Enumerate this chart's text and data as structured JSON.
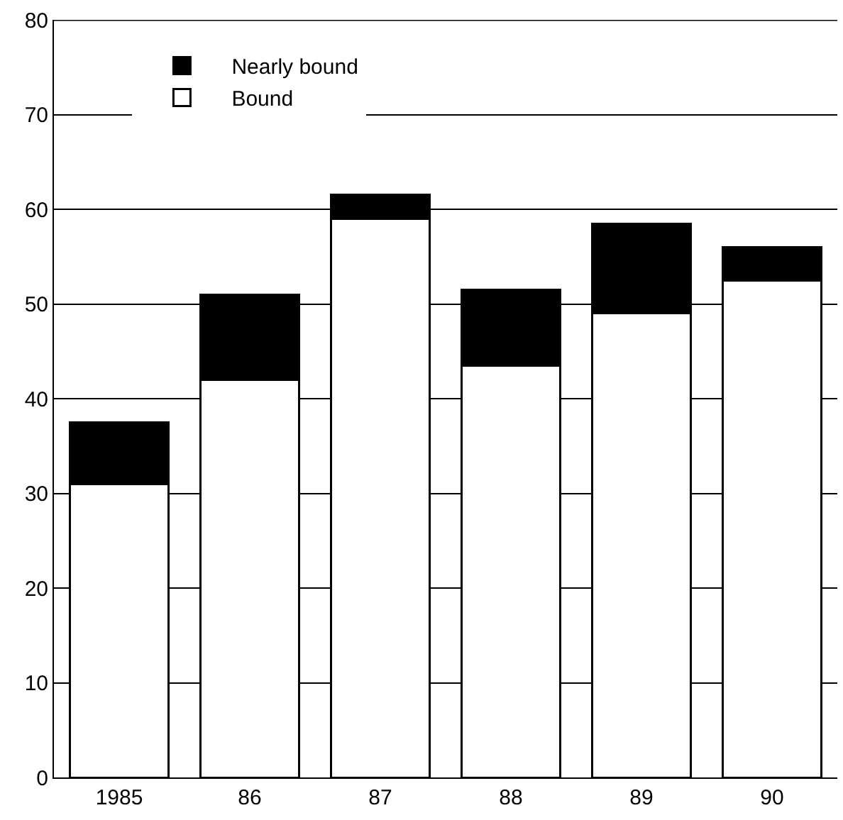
{
  "chart_data": {
    "type": "bar",
    "stacked": true,
    "categories": [
      "1985",
      "86",
      "87",
      "88",
      "89",
      "90"
    ],
    "series": [
      {
        "name": "Bound",
        "color": "#ffffff",
        "values": [
          31,
          42,
          59,
          43.5,
          49,
          52.5
        ]
      },
      {
        "name": "Nearly bound",
        "color": "#000000",
        "values": [
          6.5,
          9,
          2.5,
          8,
          9.5,
          3.5
        ]
      }
    ],
    "ylim": [
      0,
      80
    ],
    "yticks": [
      0,
      10,
      20,
      30,
      40,
      50,
      60,
      70,
      80
    ],
    "grid": "y",
    "legend": "top left"
  }
}
